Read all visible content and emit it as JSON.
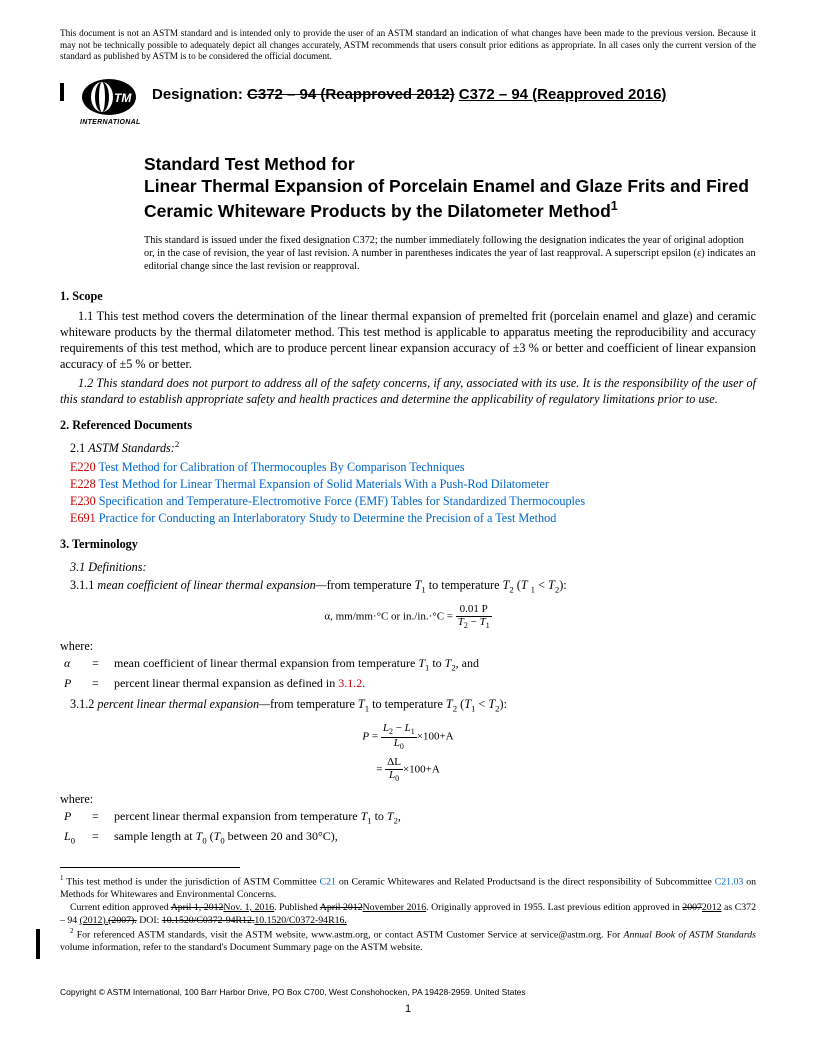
{
  "disclaimer": "This document is not an ASTM standard and is intended only to provide the user of an ASTM standard an indication of what changes have been made to the previous version. Because it may not be technically possible to adequately depict all changes accurately, ASTM recommends that users consult prior editions as appropriate. In all cases only the current version of the standard as published by ASTM is to be considered the official document.",
  "logo_label": "INTERNATIONAL",
  "designation_label": "Designation: ",
  "designation_old": "C372 – 94 (Reapproved 2012)",
  "designation_new": "C372 – 94 (Reapproved 2016)",
  "title_line1": "Standard Test Method for",
  "title_line2": "Linear Thermal Expansion of Porcelain Enamel and Glaze Frits and Fired Ceramic Whiteware Products by the Dilatometer Method",
  "title_sup": "1",
  "issued_note": "This standard is issued under the fixed designation C372; the number immediately following the designation indicates the year of original adoption or, in the case of revision, the year of last revision. A number in parentheses indicates the year of last reapproval. A superscript epsilon (ε) indicates an editorial change since the last revision or reapproval.",
  "sec1_head": "1. Scope",
  "sec1_1": "1.1 This test method covers the determination of the linear thermal expansion of premelted frit (porcelain enamel and glaze) and ceramic whiteware products by the thermal dilatometer method. This test method is applicable to apparatus meeting the reproducibility and accuracy requirements of this test method, which are to produce percent linear expansion accuracy of ±3 % or better and coefficient of linear expansion accuracy of ±5 % or better.",
  "sec1_2": "1.2 This standard does not purport to address all of the safety concerns, if any, associated with its use. It is the responsibility of the user of this standard to establish appropriate safety and health practices and determine the applicability of regulatory limitations prior to use.",
  "sec2_head": "2. Referenced Documents",
  "sec2_1_label": "2.1 ",
  "sec2_1_italic": "ASTM Standards:",
  "sec2_1_sup": "2",
  "refs": [
    {
      "code": "E220",
      "title": "Test Method for Calibration of Thermocouples By Comparison Techniques"
    },
    {
      "code": "E228",
      "title": "Test Method for Linear Thermal Expansion of Solid Materials With a Push-Rod Dilatometer"
    },
    {
      "code": "E230",
      "title": "Specification and Temperature-Electromotive Force (EMF) Tables for Standardized Thermocouples"
    },
    {
      "code": "E691",
      "title": "Practice for Conducting an Interlaboratory Study to Determine the Precision of a Test Method"
    }
  ],
  "sec3_head": "3. Terminology",
  "sec3_1": "3.1 Definitions:",
  "def311_pre": "3.1.1 ",
  "def311_term": "mean coefficient of linear thermal expansion—",
  "def311_post_a": "from temperature ",
  "def311_post_b": " to temperature ",
  "formula1_lhs": "α, mm/mm·°C or in./in.·°C",
  "formula1_num": "0.01 P",
  "formula1_den_a": "T",
  "formula1_den_b": "T",
  "where_label": "where:",
  "where1": [
    {
      "sym": "α",
      "desc_a": "mean coefficient of linear thermal expansion from temperature ",
      "desc_b": " to ",
      "desc_c": ", and"
    },
    {
      "sym": "P",
      "desc_a": "percent linear thermal expansion as defined in ",
      "ref": "3.1.2",
      "desc_b": "."
    }
  ],
  "def312_pre": "3.1.2 ",
  "def312_term": "percent linear thermal expansion—",
  "def312_post_a": "from temperature ",
  "def312_post_b": " to temperature ",
  "formula2_L2": "L",
  "formula2_L1": "L",
  "formula2_L0": "L",
  "formula2_tail": "×100+A",
  "formula3_dL": "ΔL",
  "where2": [
    {
      "sym": "P",
      "desc_a": "percent linear thermal expansion from temperature ",
      "desc_b": " to ",
      "desc_c": ","
    },
    {
      "sym": "L",
      "sub": "0",
      "desc_a": "sample length at ",
      "desc_b": " (",
      "desc_c": " between 20 and 30°C),"
    }
  ],
  "fn1_a": " This test method is under the jurisdiction of ASTM Committee ",
  "fn1_link1": "C21",
  "fn1_b": " on Ceramic Whitewares and Related Productsand is the direct responsibility of Subcommittee ",
  "fn1_link2": "C21.03",
  "fn1_c": " on Methods for Whitewares and Environmental Concerns.",
  "fn1_d1": "Current edition approved ",
  "fn1_d_old1": "April 1, 2012",
  "fn1_d_new1": "Nov. 1, 2016",
  "fn1_d2": ". Published ",
  "fn1_d_old2": "April 2012",
  "fn1_d_new2": "November 2016",
  "fn1_d3": ". Originally approved in 1955. Last previous edition approved in ",
  "fn1_d_old3": "2007",
  "fn1_d_new3": "2012",
  "fn1_d4": " as C372 – 94 ",
  "fn1_d_new4": "(2012).",
  "fn1_d_old4": "(2007).",
  "fn1_d5": " DOI: ",
  "fn1_d_old5": "10.1520/C0372-94R12.",
  "fn1_d_new5": "10.1520/C0372-94R16.",
  "fn2_a": " For referenced ASTM standards, visit the ASTM website, www.astm.org, or contact ASTM Customer Service at service@astm.org. For ",
  "fn2_i": "Annual Book of ASTM Standards",
  "fn2_b": " volume information, refer to the standard's Document Summary page on the ASTM website.",
  "copyright": "Copyright © ASTM International, 100 Barr Harbor Drive, PO Box C700, West Conshohocken, PA 19428-2959. United States",
  "page_num": "1"
}
